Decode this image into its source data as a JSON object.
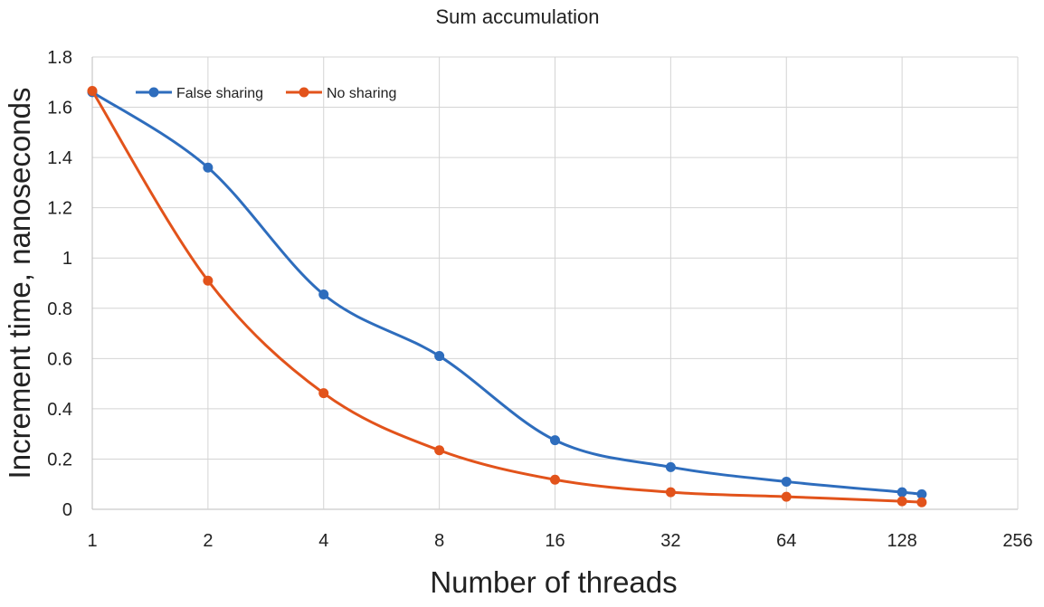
{
  "chart_data": {
    "type": "line",
    "title": "Sum accumulation",
    "xlabel": "Number of threads",
    "ylabel": "Increment time, nanoseconds",
    "x_scale": "log2",
    "xlim": [
      1,
      256
    ],
    "ylim": [
      0,
      1.8
    ],
    "x_ticks": [
      "1",
      "2",
      "4",
      "8",
      "16",
      "32",
      "64",
      "128",
      "256"
    ],
    "y_ticks": [
      "0",
      "0.2",
      "0.4",
      "0.6",
      "0.8",
      "1",
      "1.2",
      "1.4",
      "1.6",
      "1.8"
    ],
    "grid": true,
    "legend_position": "top-left",
    "smooth": true,
    "series": [
      {
        "name": "False sharing",
        "color": "#2e6dbd",
        "x": [
          1,
          2,
          4,
          8,
          16,
          32,
          64,
          128,
          144
        ],
        "y": [
          1.66,
          1.36,
          0.855,
          0.61,
          0.275,
          0.168,
          0.11,
          0.068,
          0.06
        ]
      },
      {
        "name": "No sharing",
        "color": "#e2531b",
        "x": [
          1,
          2,
          4,
          8,
          16,
          32,
          64,
          128,
          144
        ],
        "y": [
          1.665,
          0.91,
          0.462,
          0.235,
          0.118,
          0.068,
          0.05,
          0.032,
          0.028
        ]
      }
    ]
  }
}
